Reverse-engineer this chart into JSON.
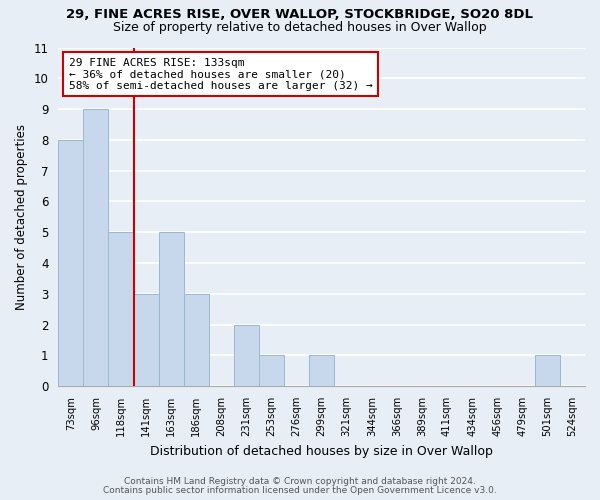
{
  "title": "29, FINE ACRES RISE, OVER WALLOP, STOCKBRIDGE, SO20 8DL",
  "subtitle": "Size of property relative to detached houses in Over Wallop",
  "xlabel": "Distribution of detached houses by size in Over Wallop",
  "ylabel": "Number of detached properties",
  "bar_color": "#c8d8ec",
  "bar_edge_color": "#9ab8d0",
  "bin_labels": [
    "73sqm",
    "96sqm",
    "118sqm",
    "141sqm",
    "163sqm",
    "186sqm",
    "208sqm",
    "231sqm",
    "253sqm",
    "276sqm",
    "299sqm",
    "321sqm",
    "344sqm",
    "366sqm",
    "389sqm",
    "411sqm",
    "434sqm",
    "456sqm",
    "479sqm",
    "501sqm",
    "524sqm"
  ],
  "bar_heights": [
    8,
    9,
    5,
    3,
    5,
    3,
    0,
    2,
    1,
    0,
    1,
    0,
    0,
    0,
    0,
    0,
    0,
    0,
    0,
    1,
    0
  ],
  "vline_position": 2.5,
  "annotation_title": "29 FINE ACRES RISE: 133sqm",
  "annotation_line1": "← 36% of detached houses are smaller (20)",
  "annotation_line2": "58% of semi-detached houses are larger (32) →",
  "ylim": [
    0,
    11
  ],
  "yticks": [
    0,
    1,
    2,
    3,
    4,
    5,
    6,
    7,
    8,
    9,
    10,
    11
  ],
  "vline_color": "#cc0000",
  "annotation_box_color": "#ffffff",
  "annotation_box_edge": "#cc0000",
  "footer1": "Contains HM Land Registry data © Crown copyright and database right 2024.",
  "footer2": "Contains public sector information licensed under the Open Government Licence v3.0.",
  "background_color": "#e8eef5",
  "grid_color": "#ffffff",
  "spine_color": "#aaaaaa"
}
